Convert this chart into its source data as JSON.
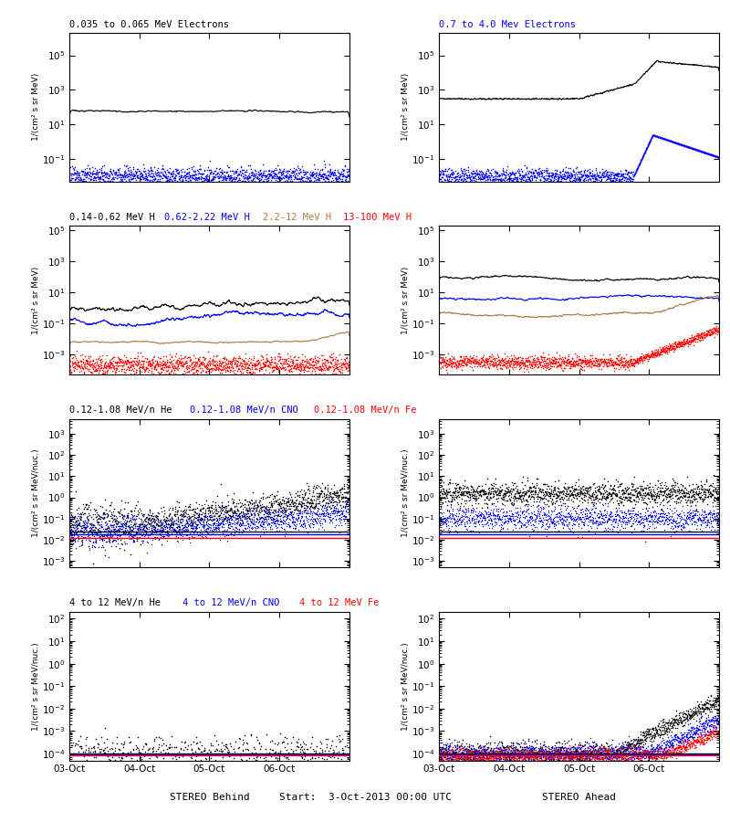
{
  "title_main": "Start:  3-Oct-2013 00:00 UTC",
  "xlabel_left": "STEREO Behind",
  "xlabel_right": "STEREO Ahead",
  "xtick_labels": [
    "03-Oct",
    "04-Oct",
    "05-Oct",
    "06-Oct"
  ],
  "panel_titles_row0": [
    "0.035 to 0.065 MeV Electrons",
    "0.7 to 4.0 Mev Electrons"
  ],
  "panel_titles_row0_colors": [
    "black",
    "blue"
  ],
  "panel_titles_row1": [
    "0.14-0.62 MeV H",
    "0.62-2.22 MeV H",
    "2.2-12 MeV H",
    "13-100 MeV H"
  ],
  "panel_titles_row1_colors": [
    "black",
    "blue",
    "#b07840",
    "red"
  ],
  "panel_titles_row2": [
    "0.12-1.08 MeV/n He",
    "0.12-1.08 MeV/n CNO",
    "0.12-1.08 MeV/n Fe"
  ],
  "panel_titles_row2_colors": [
    "black",
    "blue",
    "red"
  ],
  "panel_titles_row3": [
    "4 to 12 MeV/n He",
    "4 to 12 MeV/n CNO",
    "4 to 12 MeV Fe"
  ],
  "panel_titles_row3_colors": [
    "black",
    "blue",
    "red"
  ],
  "ylabels_electrons": "1/(cm² s sr MeV)",
  "ylabels_H": "1/(cm² s sr MeV)",
  "ylabels_heavy": "1/(cm² s sr MeV/nuc.)",
  "brown_color": "#b07840"
}
